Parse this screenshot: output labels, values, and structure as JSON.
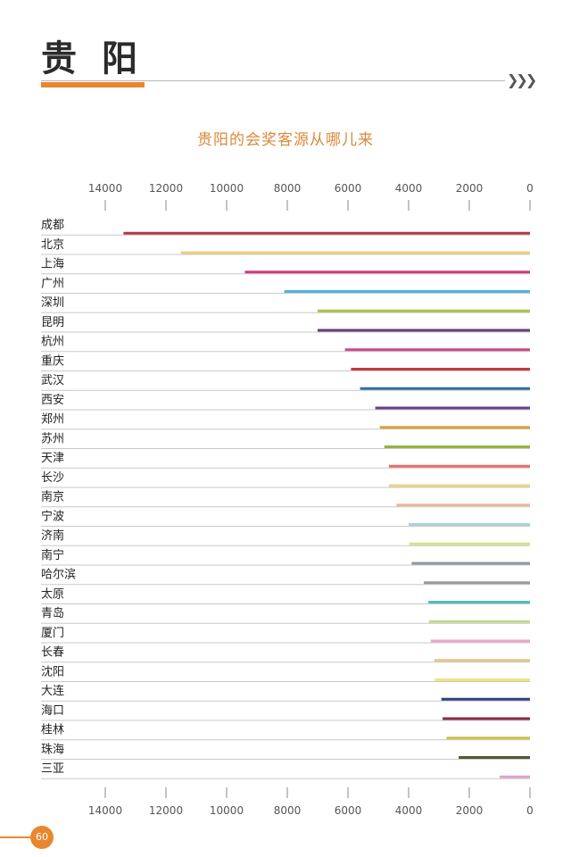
{
  "header": {
    "title": "贵阳",
    "accent_color": "#e8872f",
    "chevrons": "❯❯❯"
  },
  "page": {
    "number": "60",
    "accent_color": "#e8872f"
  },
  "chart_data": {
    "type": "bar",
    "orientation": "horizontal",
    "x_axis_reversed": true,
    "title": "贵阳的会奖客源从哪儿来",
    "title_color": "#d98a3a",
    "xlim": [
      0,
      14000
    ],
    "xticks": [
      14000,
      12000,
      10000,
      8000,
      6000,
      4000,
      2000,
      0
    ],
    "axis_position": "top and bottom",
    "grid": false,
    "categories": [
      "成都",
      "北京",
      "上海",
      "广州",
      "深圳",
      "昆明",
      "杭州",
      "重庆",
      "武汉",
      "西安",
      "郑州",
      "苏州",
      "天津",
      "长沙",
      "南京",
      "宁波",
      "济南",
      "南宁",
      "哈尔滨",
      "太原",
      "青岛",
      "厦门",
      "长春",
      "沈阳",
      "大连",
      "海口",
      "桂林",
      "珠海",
      "三亚"
    ],
    "values": [
      13400,
      11500,
      9400,
      8100,
      7000,
      7000,
      6100,
      5900,
      5600,
      5100,
      4950,
      4800,
      4650,
      4650,
      4400,
      4000,
      3980,
      3900,
      3500,
      3350,
      3330,
      3270,
      3150,
      3130,
      2920,
      2880,
      2750,
      2350,
      1000
    ],
    "colors": [
      "#b5364a",
      "#edcf7a",
      "#cc3d7e",
      "#4db3e0",
      "#a9c24a",
      "#6a3a7a",
      "#c74a8c",
      "#c9383f",
      "#2f6fa0",
      "#6a3d8e",
      "#e39a3c",
      "#94b43f",
      "#e56d6d",
      "#ebd28a",
      "#e8b89a",
      "#a8d2dc",
      "#d7e08c",
      "#8c9a9c",
      "#9a9a9a",
      "#4dbfc2",
      "#c2d989",
      "#e7a9c6",
      "#e6c48c",
      "#f1e27e",
      "#343f7e",
      "#8a2b46",
      "#c9c24c",
      "#4f5a2e",
      "#d9a3cd"
    ]
  }
}
